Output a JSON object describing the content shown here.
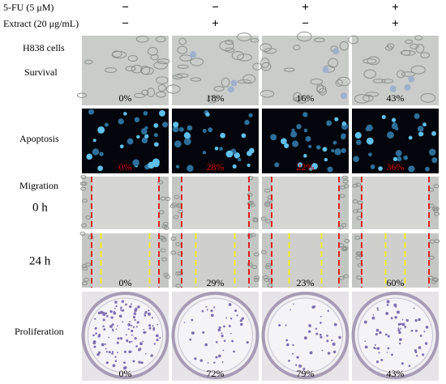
{
  "treatments": [
    {
      "label": "5-FU (5 μM)",
      "signs": [
        "−",
        "−",
        "+",
        "+"
      ]
    },
    {
      "label": "Extract (20 μg/mL)",
      "signs": [
        "−",
        "+",
        "−",
        "+"
      ]
    }
  ],
  "cell_line": "H838 cells",
  "survival": {
    "label": "Survival",
    "values": [
      "0%",
      "18%",
      "16%",
      "43%"
    ]
  },
  "apoptosis": {
    "label": "Apoptosis",
    "values": [
      "0%",
      "28%",
      "22%",
      "36%"
    ]
  },
  "migration": {
    "label": "Migration",
    "time_points": [
      "0 h",
      "24 h"
    ],
    "values": [
      "0%",
      "29%",
      "23%",
      "60%"
    ]
  },
  "proliferation": {
    "label": "Proliferation",
    "values": [
      "0%",
      "72%",
      "79%",
      "43%"
    ]
  }
}
